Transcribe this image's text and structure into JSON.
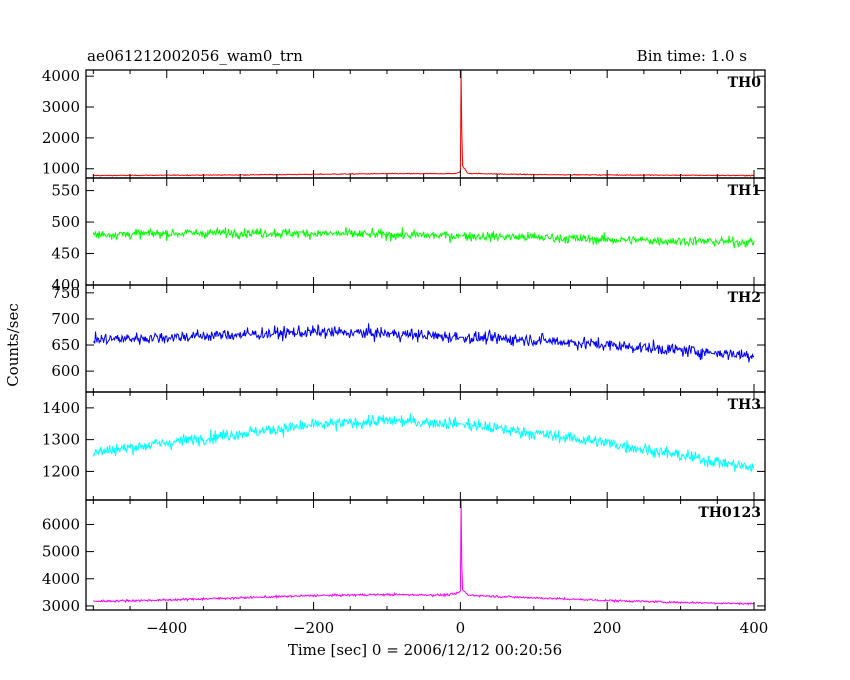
{
  "header": {
    "title": "ae061212002056_wam0_trn",
    "bin_time": "Bin time: 1.0 s"
  },
  "axes": {
    "ylabel": "Counts/sec",
    "xlabel": "Time [sec] 0 = 2006/12/12 00:20:56"
  },
  "chart_data": {
    "type": "line",
    "title": "ae061212002056_wam0_trn",
    "xlabel": "Time [sec] 0 = 2006/12/12 00:20:56",
    "ylabel": "Counts/sec",
    "xlim": [
      -510,
      415
    ],
    "x_ticks": [
      -400,
      -200,
      0,
      200,
      400
    ],
    "x_tick_labels": [
      "−400",
      "−200",
      "0",
      "200",
      "400"
    ],
    "bin_time_s": 1.0,
    "grid": false,
    "panels": [
      {
        "name": "TH0",
        "color": "#ff0000",
        "ylim": [
          700,
          4200
        ],
        "y_ticks": [
          1000,
          2000,
          3000,
          4000
        ],
        "x": [
          -500,
          -400,
          -300,
          -200,
          -100,
          -20,
          -5,
          0,
          1,
          2,
          3,
          10,
          50,
          100,
          200,
          300,
          400
        ],
        "y": [
          780,
          790,
          800,
          820,
          840,
          840,
          850,
          900,
          4200,
          2200,
          1100,
          850,
          830,
          810,
          800,
          790,
          780
        ]
      },
      {
        "name": "TH1",
        "color": "#00ff00",
        "ylim": [
          400,
          570
        ],
        "y_ticks": [
          400,
          450,
          500,
          550
        ],
        "x": [
          -500,
          -400,
          -300,
          -200,
          -100,
          0,
          100,
          200,
          300,
          400
        ],
        "y": [
          480,
          482,
          483,
          482,
          480,
          478,
          476,
          472,
          470,
          468
        ]
      },
      {
        "name": "TH2",
        "color": "#0000ff",
        "ylim": [
          560,
          765
        ],
        "y_ticks": [
          600,
          650,
          700,
          750
        ],
        "x": [
          -500,
          -400,
          -300,
          -200,
          -100,
          0,
          100,
          200,
          300,
          400
        ],
        "y": [
          660,
          665,
          670,
          675,
          672,
          665,
          660,
          650,
          640,
          630
        ]
      },
      {
        "name": "TH3",
        "color": "#00ffff",
        "ylim": [
          1110,
          1450
        ],
        "y_ticks": [
          1200,
          1300,
          1400
        ],
        "x": [
          -500,
          -400,
          -300,
          -200,
          -100,
          0,
          100,
          200,
          300,
          400
        ],
        "y": [
          1260,
          1290,
          1320,
          1345,
          1360,
          1350,
          1320,
          1290,
          1250,
          1210
        ]
      },
      {
        "name": "TH0123",
        "color": "#ff00ff",
        "ylim": [
          2850,
          6900
        ],
        "y_ticks": [
          3000,
          4000,
          5000,
          6000
        ],
        "x": [
          -500,
          -400,
          -300,
          -200,
          -100,
          -20,
          -5,
          0,
          1,
          2,
          3,
          10,
          50,
          100,
          200,
          300,
          400
        ],
        "y": [
          3170,
          3220,
          3300,
          3380,
          3420,
          3400,
          3450,
          3550,
          6900,
          4500,
          3600,
          3400,
          3350,
          3300,
          3200,
          3130,
          3080
        ]
      }
    ]
  }
}
